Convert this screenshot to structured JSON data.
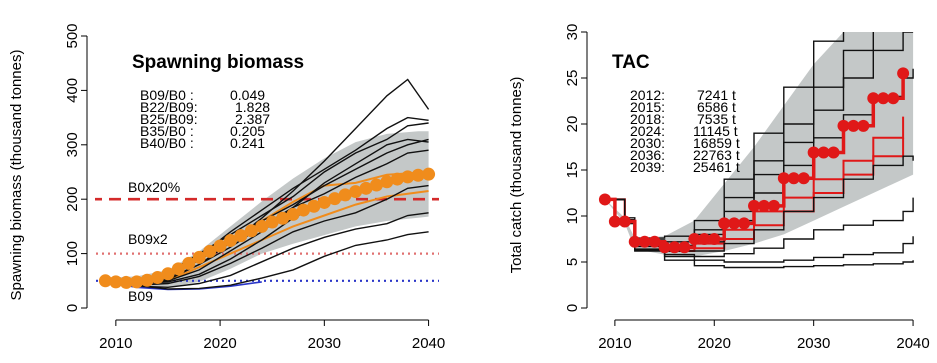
{
  "chart_data": [
    {
      "type": "line",
      "title": "Spawning biomass",
      "ylabel": "Spawning biomass (thousand tonnes)",
      "xlabel": "",
      "xlim": [
        2008,
        2041
      ],
      "ylim": [
        0,
        500
      ],
      "x_ticks": [
        2010,
        2020,
        2030,
        2040
      ],
      "y_ticks": [
        0,
        100,
        200,
        300,
        400,
        500
      ],
      "grid": false,
      "stats": [
        {
          "label": "B09/B0 :",
          "value": "0.049"
        },
        {
          "label": "B22/B09:",
          "value": "1.828"
        },
        {
          "label": "B25/B09:",
          "value": "2.387"
        },
        {
          "label": "B35/B0 :",
          "value": "0.205"
        },
        {
          "label": "B40/B0 :",
          "value": "0.241"
        }
      ],
      "reference_lines": [
        {
          "label": "B0x20%",
          "y": 200,
          "color": "#d42a2a",
          "style": "dashed"
        },
        {
          "label": "B09x2",
          "y": 100,
          "color": "#e07070",
          "style": "dotted"
        },
        {
          "label": "B09",
          "y": 50,
          "color": "#2a36c8",
          "style": "dotted"
        }
      ],
      "envelope": {
        "color": "#c4c8c8",
        "x": [
          2009,
          2012,
          2015,
          2018,
          2021,
          2024,
          2027,
          2030,
          2033,
          2036,
          2039,
          2040
        ],
        "lower": [
          44,
          38,
          38,
          48,
          72,
          100,
          118,
          134,
          150,
          160,
          166,
          168
        ],
        "upper": [
          56,
          58,
          70,
          104,
          150,
          196,
          238,
          275,
          305,
          320,
          325,
          325
        ]
      },
      "median": {
        "color": "#f08c1c",
        "x": [
          2009,
          2010,
          2011,
          2012,
          2013,
          2014,
          2015,
          2016,
          2017,
          2018,
          2019,
          2020,
          2021,
          2022,
          2023,
          2024,
          2025,
          2026,
          2027,
          2028,
          2029,
          2030,
          2031,
          2032,
          2033,
          2034,
          2035,
          2036,
          2037,
          2038,
          2039,
          2040
        ],
        "y": [
          50,
          48,
          47,
          48,
          51,
          56,
          63,
          72,
          82,
          93,
          104,
          114,
          124,
          133,
          142,
          150,
          158,
          165,
          172,
          180,
          187,
          194,
          201,
          208,
          214,
          220,
          226,
          232,
          237,
          241,
          244,
          246
        ]
      },
      "orange_trajectories": [
        {
          "x": [
            2009,
            2012,
            2015,
            2018,
            2021,
            2024,
            2027,
            2030,
            2033,
            2036,
            2040
          ],
          "y": [
            50,
            47,
            60,
            90,
            120,
            160,
            195,
            225,
            230,
            245,
            250
          ]
        },
        {
          "x": [
            2009,
            2012,
            2015,
            2018,
            2021,
            2024,
            2027,
            2030,
            2033,
            2036,
            2040
          ],
          "y": [
            50,
            45,
            50,
            75,
            100,
            125,
            150,
            170,
            190,
            205,
            215
          ]
        }
      ],
      "trajectories": [
        {
          "x": [
            2009,
            2012,
            2015,
            2018,
            2021,
            2024,
            2027,
            2030,
            2033,
            2036,
            2038,
            2040
          ],
          "y": [
            50,
            45,
            55,
            80,
            120,
            165,
            215,
            270,
            330,
            390,
            420,
            365
          ]
        },
        {
          "x": [
            2009,
            2012,
            2015,
            2018,
            2021,
            2024,
            2027,
            2030,
            2033,
            2036,
            2038,
            2040
          ],
          "y": [
            50,
            48,
            60,
            95,
            140,
            180,
            220,
            255,
            290,
            330,
            350,
            345
          ]
        },
        {
          "x": [
            2009,
            2012,
            2015,
            2018,
            2021,
            2024,
            2027,
            2030,
            2033,
            2036,
            2038,
            2040
          ],
          "y": [
            50,
            50,
            65,
            100,
            135,
            170,
            205,
            250,
            285,
            310,
            335,
            340
          ]
        },
        {
          "x": [
            2009,
            2012,
            2015,
            2018,
            2021,
            2024,
            2027,
            2030,
            2033,
            2036,
            2038,
            2040
          ],
          "y": [
            50,
            44,
            50,
            70,
            105,
            140,
            185,
            230,
            265,
            300,
            310,
            305
          ]
        },
        {
          "x": [
            2009,
            2012,
            2015,
            2018,
            2021,
            2024,
            2027,
            2030,
            2033,
            2036,
            2038,
            2040
          ],
          "y": [
            50,
            46,
            58,
            88,
            125,
            160,
            190,
            225,
            255,
            285,
            300,
            310
          ]
        },
        {
          "x": [
            2009,
            2012,
            2015,
            2018,
            2021,
            2024,
            2027,
            2030,
            2033,
            2036,
            2038,
            2040
          ],
          "y": [
            50,
            47,
            52,
            80,
            112,
            150,
            185,
            210,
            240,
            265,
            285,
            290
          ]
        },
        {
          "x": [
            2009,
            2012,
            2015,
            2018,
            2021,
            2024,
            2027,
            2030,
            2033,
            2036,
            2038,
            2040
          ],
          "y": [
            50,
            45,
            48,
            62,
            90,
            125,
            165,
            195,
            215,
            230,
            245,
            240
          ]
        },
        {
          "x": [
            2009,
            2012,
            2015,
            2018,
            2021,
            2024,
            2027,
            2030,
            2033,
            2036,
            2038,
            2040
          ],
          "y": [
            50,
            42,
            45,
            58,
            82,
            110,
            140,
            160,
            175,
            200,
            220,
            225
          ]
        },
        {
          "x": [
            2009,
            2012,
            2015,
            2018,
            2021,
            2024,
            2027,
            2030,
            2033,
            2036,
            2038,
            2040
          ],
          "y": [
            50,
            40,
            38,
            45,
            60,
            85,
            110,
            130,
            145,
            155,
            170,
            175
          ]
        },
        {
          "x": [
            2009,
            2012,
            2015,
            2018,
            2021,
            2024,
            2027,
            2030,
            2033,
            2036,
            2038,
            2040
          ],
          "y": [
            50,
            41,
            35,
            36,
            42,
            55,
            70,
            95,
            115,
            125,
            135,
            140
          ]
        }
      ],
      "blue_trajectory": {
        "x": [
          2009,
          2012,
          2015,
          2018,
          2021,
          2024
        ],
        "y": [
          48,
          38,
          34,
          35,
          40,
          48
        ]
      }
    },
    {
      "type": "line",
      "title": "TAC",
      "ylabel": "Total catch (thousand tonnes)",
      "xlabel": "",
      "xlim": [
        2008,
        2041
      ],
      "ylim": [
        0,
        30
      ],
      "x_ticks": [
        2010,
        2020,
        2030,
        2040
      ],
      "y_ticks": [
        0,
        5,
        10,
        15,
        20,
        25,
        30
      ],
      "grid": false,
      "stats": [
        {
          "label": "2012:",
          "value": "7241 t"
        },
        {
          "label": "2015:",
          "value": "6586 t"
        },
        {
          "label": "2018:",
          "value": "7535 t"
        },
        {
          "label": "2024:",
          "value": "11145 t"
        },
        {
          "label": "2030:",
          "value": "16859 t"
        },
        {
          "label": "2036:",
          "value": "22763 t"
        },
        {
          "label": "2039:",
          "value": "25461 t"
        }
      ],
      "envelope": {
        "color": "#c4c8c8",
        "x": [
          2009,
          2011,
          2012,
          2015,
          2018,
          2021,
          2024,
          2027,
          2030,
          2033,
          2036,
          2039,
          2040
        ],
        "lower": [
          11.8,
          9.2,
          6.4,
          5.8,
          5.6,
          6.2,
          7.0,
          8.0,
          9.5,
          11.0,
          12.5,
          14.0,
          14.5
        ],
        "upper": [
          11.8,
          9.8,
          7.6,
          7.8,
          9.5,
          13.5,
          17.5,
          22.0,
          26.5,
          30.0,
          30.0,
          30.0,
          30.0
        ]
      },
      "median": {
        "color": "#e01818",
        "x": [
          2009,
          2010,
          2011,
          2012,
          2013,
          2014,
          2015,
          2016,
          2017,
          2018,
          2019,
          2020,
          2021,
          2022,
          2023,
          2024,
          2025,
          2026,
          2027,
          2028,
          2029,
          2030,
          2031,
          2032,
          2033,
          2034,
          2035,
          2036,
          2037,
          2038,
          2039
        ],
        "y": [
          11.8,
          9.4,
          9.4,
          7.2,
          7.2,
          7.2,
          6.6,
          6.6,
          6.6,
          7.5,
          7.5,
          7.5,
          9.2,
          9.2,
          9.2,
          11.1,
          11.1,
          11.1,
          14.1,
          14.1,
          14.1,
          16.9,
          16.9,
          16.9,
          19.8,
          19.8,
          19.8,
          22.8,
          22.8,
          22.8,
          25.5
        ]
      },
      "red_trajectories": [
        {
          "x": [
            2009,
            2011,
            2012,
            2015,
            2018,
            2021,
            2024,
            2027,
            2030,
            2033,
            2036,
            2039
          ],
          "y": [
            11.8,
            9.4,
            7.0,
            6.2,
            6.5,
            7.5,
            9.0,
            10.5,
            12.5,
            14.5,
            16.5,
            18.5
          ]
        },
        {
          "x": [
            2009,
            2011,
            2012,
            2015,
            2018,
            2021,
            2024,
            2027,
            2030,
            2033,
            2036,
            2039
          ],
          "y": [
            11.8,
            9.4,
            7.2,
            6.5,
            7.0,
            8.5,
            10.5,
            12.0,
            14.0,
            16.0,
            18.5,
            20.8
          ]
        }
      ],
      "trajectories": [
        {
          "x": [
            2009,
            2011,
            2012,
            2015,
            2018,
            2021,
            2024,
            2027,
            2030,
            2033,
            2036,
            2039,
            2040
          ],
          "y": [
            11.8,
            9.8,
            7.6,
            7.8,
            9.5,
            14.0,
            19.0,
            24.0,
            29.0,
            31.0,
            31.0,
            31.0,
            31.0
          ]
        },
        {
          "x": [
            2009,
            2011,
            2012,
            2015,
            2018,
            2021,
            2024,
            2027,
            2030,
            2033,
            2036,
            2039,
            2040
          ],
          "y": [
            11.8,
            9.6,
            7.4,
            7.2,
            8.5,
            12.0,
            16.0,
            20.0,
            24.0,
            28.0,
            30.5,
            31.0,
            31.0
          ]
        },
        {
          "x": [
            2009,
            2011,
            2012,
            2015,
            2018,
            2021,
            2024,
            2027,
            2030,
            2033,
            2036,
            2039,
            2040
          ],
          "y": [
            11.8,
            9.5,
            7.1,
            6.8,
            8.0,
            10.5,
            14.5,
            18.0,
            21.5,
            25.0,
            28.0,
            30.0,
            30.0
          ]
        },
        {
          "x": [
            2009,
            2011,
            2012,
            2015,
            2018,
            2021,
            2024,
            2027,
            2030,
            2033,
            2036,
            2039,
            2040
          ],
          "y": [
            11.8,
            9.4,
            6.9,
            6.6,
            7.2,
            9.5,
            12.5,
            15.5,
            18.5,
            21.0,
            23.0,
            25.0,
            26.0
          ]
        },
        {
          "x": [
            2009,
            2011,
            2012,
            2015,
            2018,
            2021,
            2024,
            2027,
            2030,
            2033,
            2036,
            2039,
            2040
          ],
          "y": [
            11.8,
            9.3,
            6.7,
            6.2,
            6.2,
            7.0,
            8.5,
            10.5,
            12.0,
            14.0,
            15.5,
            16.5,
            16.0
          ]
        },
        {
          "x": [
            2009,
            2011,
            2012,
            2015,
            2018,
            2021,
            2024,
            2027,
            2030,
            2033,
            2036,
            2039,
            2040
          ],
          "y": [
            11.8,
            9.2,
            6.4,
            5.8,
            5.6,
            5.9,
            6.5,
            7.5,
            8.5,
            9.0,
            9.5,
            10.5,
            12.0
          ]
        },
        {
          "x": [
            2009,
            2011,
            2012,
            2015,
            2018,
            2021,
            2024,
            2027,
            2030,
            2033,
            2036,
            2039,
            2040
          ],
          "y": [
            11.8,
            9.2,
            6.3,
            5.6,
            5.2,
            5.0,
            5.0,
            5.2,
            5.5,
            5.8,
            6.0,
            7.0,
            7.8
          ]
        },
        {
          "x": [
            2009,
            2011,
            2012,
            2015,
            2018,
            2021,
            2024,
            2027,
            2030,
            2033,
            2036,
            2039,
            2040
          ],
          "y": [
            11.8,
            9.2,
            6.2,
            5.2,
            4.6,
            4.4,
            4.4,
            4.5,
            4.6,
            4.7,
            4.8,
            5.0,
            5.2
          ]
        }
      ]
    }
  ]
}
